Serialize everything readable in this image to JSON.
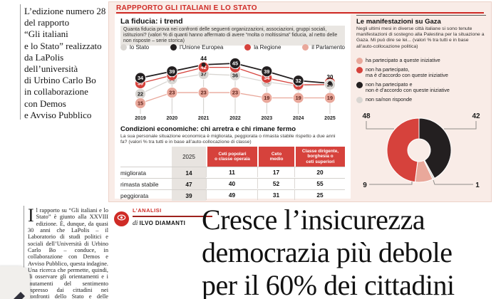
{
  "edition_note": {
    "lines": [
      "L’edizione numero 28",
      "del rapporto",
      "“Gli italiani",
      "e lo Stato” realizzato",
      "da LaPolis",
      "dell’università",
      "di Urbino Carlo Bo",
      "in collaborazione",
      "con Demos",
      "e Avviso Pubblico"
    ]
  },
  "infographic": {
    "header": "RAPPPORTO GLI ITALIANI E LO STATO"
  },
  "chart_data": [
    {
      "type": "line",
      "title": "La fiducia: i trend",
      "subtitle": "Quanta fiducia prova nei confronti delle seguenti organizzazioni, associazioni, gruppi sociali, istituzioni? (valori % di quanti hanno affermato di avere “molta o moltissima” fiducia, al netto delle non risposte – serie storica)",
      "x": [
        "2019",
        "2020",
        "2021",
        "2022",
        "2023",
        "2024",
        "2025"
      ],
      "series": [
        {
          "name": "lo Stato",
          "color": "#d9d6d2",
          "text_color": "#1b1b1b",
          "values": [
            22,
            33,
            37,
            36,
            31,
            28,
            29
          ]
        },
        {
          "name": "l’Unione Europea",
          "color": "#231f20",
          "text_color": "#ffffff",
          "values": [
            34,
            39,
            44,
            45,
            39,
            32,
            30
          ]
        },
        {
          "name": "la Regione",
          "color": "#d6423c",
          "text_color": "#ffffff",
          "values": [
            30,
            36,
            42,
            42,
            34,
            29,
            29
          ]
        },
        {
          "name": "il Parlamento",
          "color": "#e9a89b",
          "text_color": "#5f241c",
          "values": [
            15,
            23,
            23,
            23,
            19,
            19,
            19
          ]
        }
      ],
      "ylim": [
        15,
        45
      ],
      "grid": false,
      "legend_position": "top"
    },
    {
      "type": "pie",
      "title": "Le manifestazioni su Gaza",
      "subtitle": "Negli ultimi mesi in diverse città italiane si sono tenute manifestazioni di sostegno alla Palestina per la situazione a Gaza. Mi può dire se lei... (valori % tra tutti e in base all’auto-collocazione politica)",
      "slices": [
        {
          "label": "non ha partecipato e non è d’accordo con queste iniziative",
          "value": 42,
          "color": "#231f20"
        },
        {
          "label": "non sa/non risponde",
          "value": 1,
          "color": "#d9d6d2"
        },
        {
          "label": "ha partecipato a queste iniziative",
          "value": 9,
          "color": "#e9a89b"
        },
        {
          "label": "non ha partecipato, ma è d’accordo con queste iniziative",
          "value": 48,
          "color": "#d6423c"
        }
      ],
      "legend": [
        {
          "label": "ha partecipato a queste iniziative",
          "color": "#e9a89b"
        },
        {
          "label": "non ha partecipato,\nma è d’accordo con queste iniziative",
          "color": "#d6423c"
        },
        {
          "label": "non ha partecipato e\nnon è d’accordo con queste iniziative",
          "color": "#231f20"
        },
        {
          "label": "non sa/non risponde",
          "color": "#d9d6d2"
        }
      ]
    },
    {
      "type": "table",
      "title": "Condizioni economiche: chi arretra e chi rimane fermo",
      "subtitle": "La sua personale situazione economica è migliorata, peggiorata o rimasta stabile rispetto a due anni fa? (valori % tra tutti e in base all’auto-collocazione di classe)",
      "columns": [
        "",
        "2025",
        "Ceti popolari\no classe operaia",
        "Ceto\nmedio",
        "Classe dirigente,\nborghesia o\nceti superiori"
      ],
      "rows": [
        {
          "label": "migliorata",
          "values": [
            14,
            11,
            17,
            20
          ]
        },
        {
          "label": "rimasta stabile",
          "values": [
            47,
            40,
            52,
            55
          ]
        },
        {
          "label": "peggiorata",
          "values": [
            39,
            49,
            31,
            25
          ]
        }
      ]
    }
  ],
  "analysis": {
    "kicker": "L’ANALISI",
    "byline_prefix": "di",
    "byline_name": "ILVO DIAMANTI",
    "headline_lines": [
      "Cresce l’insicurezza",
      "democrazia più debole",
      "per il 60% dei cittadini"
    ]
  },
  "article": {
    "text": "Il rapporto su “Gli italiani e lo Stato” è giunto alla XXVIII edizione. È, dunque, da quasi 30 anni che LaPolis – il Laboratorio di studi politici e sociali dell’Università di Urbino Carlo Bo – conduce, in collaborazione con Demos e Avviso Pubblico, questa indagine. Una ricerca che permette, quindi, di osservare gli orientamenti e i mutamenti del sentimento espresso dai cittadini nei confronti dello Stato e delle istituzioni. Quest’anno la ricerca appare particolarmente interessante"
  },
  "icons": {
    "listen": "eye-icon",
    "edit": "pencil-icon"
  },
  "colors": {
    "accent_red": "#cf2b26",
    "fill_red": "#d6423c",
    "pink": "#e9a89b",
    "black": "#231f20",
    "gray": "#d9d6d2",
    "panel_bg": "#f9ece7"
  }
}
